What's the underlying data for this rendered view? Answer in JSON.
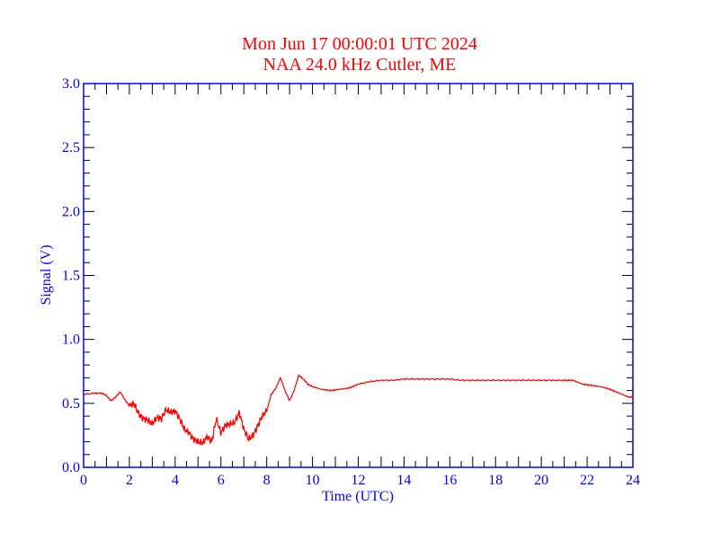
{
  "colors": {
    "title": "#ff0000",
    "axis": "#0000ff",
    "ticks": "#000000",
    "series": "#ff0000"
  },
  "chart_data": {
    "type": "line",
    "title": "Mon Jun 17 00:00:01 UTC 2024",
    "subtitle": "NAA 24.0 kHz Cutler, ME",
    "xlabel": "Time (UTC)",
    "ylabel": "Signal (V)",
    "xlim": [
      0,
      24
    ],
    "ylim": [
      0,
      3.0
    ],
    "xticks": [
      0,
      2,
      4,
      6,
      8,
      10,
      12,
      14,
      16,
      18,
      20,
      22,
      24
    ],
    "xtick_labels": [
      "0",
      "2",
      "4",
      "6",
      "8",
      "10",
      "12",
      "14",
      "16",
      "18",
      "20",
      "22",
      "24"
    ],
    "yticks": [
      0,
      0.5,
      1.0,
      1.5,
      2.0,
      2.5,
      3.0
    ],
    "ytick_labels": [
      "0.0",
      "0.5",
      "1.0",
      "1.5",
      "2.0",
      "2.5",
      "3.0"
    ],
    "grid": false,
    "series": [
      {
        "name": "NAA signal",
        "x": [
          0,
          0.5,
          0.8,
          1.0,
          1.2,
          1.4,
          1.6,
          1.8,
          2.0,
          2.2,
          2.4,
          2.6,
          2.8,
          3.0,
          3.2,
          3.4,
          3.6,
          3.8,
          4.0,
          4.2,
          4.4,
          4.6,
          4.8,
          5.0,
          5.2,
          5.4,
          5.6,
          5.8,
          6.0,
          6.2,
          6.4,
          6.6,
          6.8,
          7.0,
          7.2,
          7.4,
          7.6,
          7.8,
          8.0,
          8.2,
          8.4,
          8.6,
          8.8,
          9.0,
          9.2,
          9.4,
          9.6,
          9.8,
          10.0,
          10.4,
          10.8,
          11.2,
          11.6,
          12.0,
          12.5,
          13.0,
          13.5,
          14.0,
          14.5,
          15.0,
          15.5,
          16.0,
          16.5,
          17.0,
          17.5,
          18.0,
          18.5,
          19.0,
          19.5,
          20.0,
          20.5,
          21.0,
          21.4,
          21.8,
          22.2,
          22.6,
          23.0,
          23.4,
          23.8,
          24.0
        ],
        "y": [
          0.57,
          0.58,
          0.58,
          0.56,
          0.52,
          0.55,
          0.59,
          0.53,
          0.48,
          0.5,
          0.42,
          0.38,
          0.37,
          0.34,
          0.39,
          0.38,
          0.45,
          0.43,
          0.44,
          0.38,
          0.3,
          0.27,
          0.22,
          0.2,
          0.19,
          0.24,
          0.2,
          0.38,
          0.27,
          0.33,
          0.34,
          0.35,
          0.43,
          0.3,
          0.22,
          0.25,
          0.32,
          0.4,
          0.44,
          0.57,
          0.62,
          0.7,
          0.6,
          0.52,
          0.6,
          0.72,
          0.69,
          0.65,
          0.63,
          0.61,
          0.6,
          0.61,
          0.62,
          0.65,
          0.67,
          0.68,
          0.68,
          0.69,
          0.69,
          0.69,
          0.69,
          0.69,
          0.68,
          0.68,
          0.68,
          0.68,
          0.68,
          0.68,
          0.68,
          0.68,
          0.68,
          0.68,
          0.68,
          0.65,
          0.64,
          0.63,
          0.61,
          0.58,
          0.55,
          0.55
        ]
      }
    ]
  }
}
